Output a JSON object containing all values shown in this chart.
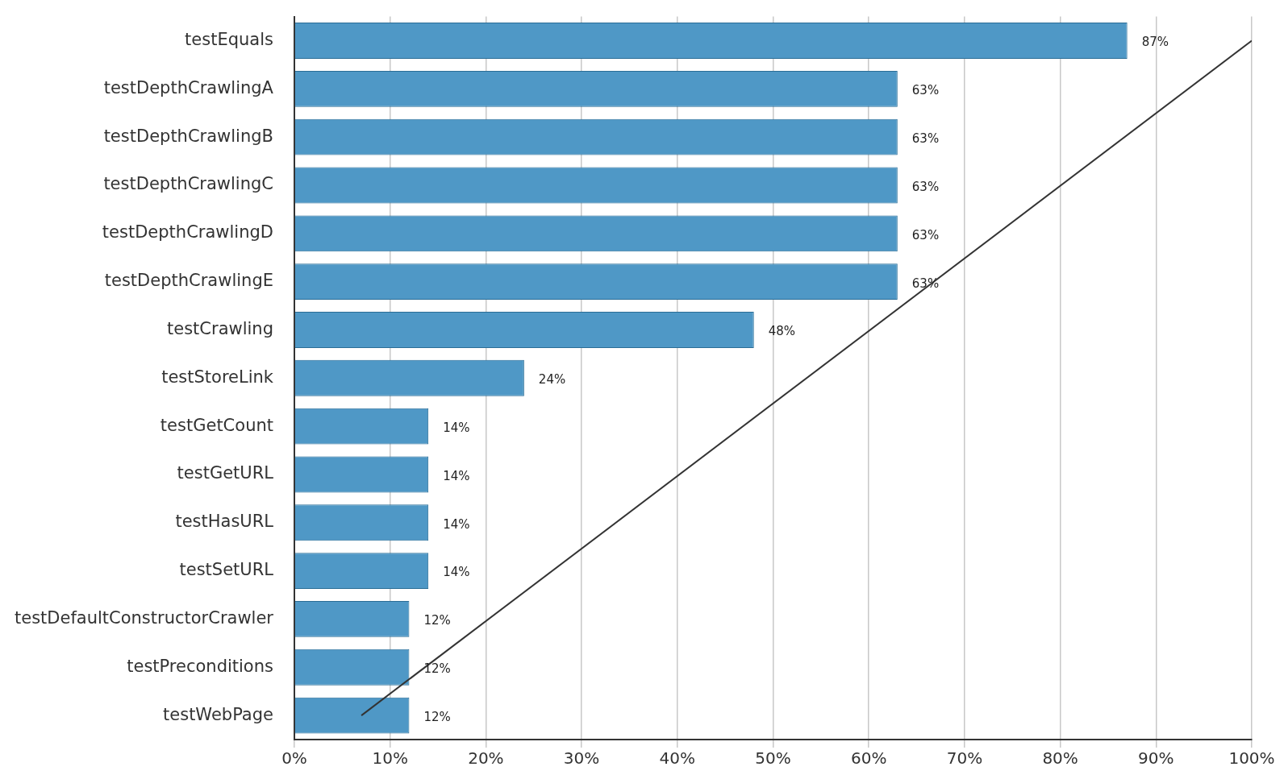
{
  "chart_data": {
    "type": "bar",
    "orientation": "horizontal",
    "categories": [
      "testEquals",
      "testDepthCrawlingA",
      "testDepthCrawlingB",
      "testDepthCrawlingC",
      "testDepthCrawlingD",
      "testDepthCrawlingE",
      "testCrawling",
      "testStoreLink",
      "testGetCount",
      "testGetURL",
      "testHasURL",
      "testSetURL",
      "testDefaultConstructorCrawler",
      "testPreconditions",
      "testWebPage"
    ],
    "series": [
      {
        "color": "#4f98c6",
        "values": [
          87,
          63,
          63,
          63,
          63,
          63,
          48,
          24,
          14,
          14,
          14,
          14,
          12,
          12,
          12
        ],
        "value_labels": [
          "87%",
          "63%",
          "63%",
          "63%",
          "63%",
          "63%",
          "48%",
          "24%",
          "14%",
          "14%",
          "14%",
          "14%",
          "12%",
          "12%",
          "12%"
        ]
      },
      {
        "type": "line",
        "color": "#333333",
        "values": [
          100,
          null,
          null,
          null,
          null,
          null,
          null,
          null,
          null,
          null,
          null,
          null,
          null,
          null,
          7
        ]
      }
    ],
    "xlim": [
      0,
      100
    ],
    "xticks": [
      {
        "value": 0,
        "label": "0%"
      },
      {
        "value": 10,
        "label": "10%"
      },
      {
        "value": 20,
        "label": "20%"
      },
      {
        "value": 30,
        "label": "30%"
      },
      {
        "value": 40,
        "label": "40%"
      },
      {
        "value": 50,
        "label": "50%"
      },
      {
        "value": 60,
        "label": "60%"
      },
      {
        "value": 70,
        "label": "70%"
      },
      {
        "value": 80,
        "label": "80%"
      },
      {
        "value": 90,
        "label": "90%"
      },
      {
        "value": 100,
        "label": "100%"
      }
    ],
    "grid": "x",
    "legend": false,
    "marker": "none",
    "line_style": "solid"
  }
}
